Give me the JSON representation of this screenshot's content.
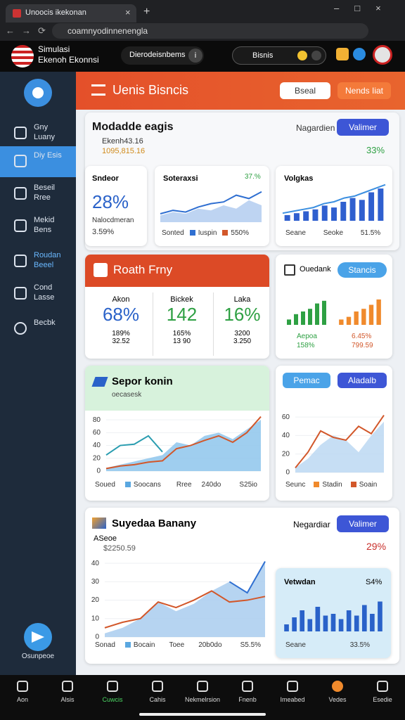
{
  "browser": {
    "tab_title": "Unoocis ikekonan",
    "url": "coamnyodinnenengla"
  },
  "header": {
    "app_name_1": "Simulasi",
    "app_name_2": "Ekenoh Ekonnsi",
    "section": "Dierodeisnbems",
    "section_badge": "i",
    "search": "Bisnis"
  },
  "sidebar": {
    "items": [
      "Gny Luany",
      "Diy Esis",
      "Beseil Rree",
      "Mekid Bens",
      "Roudan Beeel",
      "Cond Lasse",
      "Becbk"
    ],
    "footer": "Osunpeoe"
  },
  "banner": {
    "title": "Uenis Bisncis",
    "button_1": "Bseal",
    "button_2": "Nends Iiat"
  },
  "card_1": {
    "title": "Modadde eagis",
    "line_1": "Ekenh43.16",
    "line_2": "1095,815.16",
    "filter": "Nagardien",
    "button": "Valimer",
    "change": "33%",
    "stat": {
      "label": "Sndeor",
      "value": "28%",
      "sub_label": "Nalocdmeran",
      "sub_value": "3.59%"
    },
    "trend": {
      "title": "Soteraxsi",
      "change": "37.%",
      "legend": [
        "Sonted",
        "Iuspin",
        "550%"
      ],
      "chart": {
        "ylim": [
          0,
          10
        ],
        "series": [
          {
            "kind": "area",
            "color": "#b3cdf0",
            "values": [
              2,
              3,
              2.5,
              4,
              3.5,
              5,
              4,
              6.5,
              5
            ]
          },
          {
            "kind": "line",
            "color": "#2f6fd1",
            "values": [
              2.5,
              3.5,
              3,
              4.5,
              5.5,
              6,
              8,
              7,
              9
            ]
          }
        ]
      }
    },
    "volume": {
      "title": "Volgkas",
      "legend": [
        "Seane",
        "Seoke",
        "51.5%"
      ],
      "chart": {
        "ylim": [
          0,
          10
        ],
        "series": [
          {
            "kind": "bar",
            "color": "#2f5fcf",
            "values": [
              1.5,
              2,
              2.5,
              3,
              4,
              3.5,
              5,
              6,
              5.5,
              7.5,
              8.5
            ]
          },
          {
            "kind": "line",
            "color": "#3b8fe0",
            "values": [
              2,
              2.5,
              3,
              3.5,
              4.5,
              5,
              6,
              6.5,
              7.5,
              8.5,
              9.5
            ]
          }
        ]
      }
    }
  },
  "growth": {
    "title": "Roath Frny",
    "stats": [
      {
        "label": "Akon",
        "value": "68%",
        "line_1": "189%",
        "line_2": "32.52"
      },
      {
        "label": "Bickek",
        "value": "142",
        "line_1": "165%",
        "line_2": "13 90"
      },
      {
        "label": "Laka",
        "value": "16%",
        "line_1": "3200",
        "line_2": "3.250"
      }
    ]
  },
  "compare": {
    "checkbox": "Ouedank",
    "button": "Stancis",
    "left": {
      "line_1": "Aepoa",
      "line_2": "158%",
      "chart": {
        "ylim": [
          0,
          10
        ],
        "series": [
          {
            "kind": "bar",
            "color": "#2ea043",
            "values": [
              2,
              4,
              5,
              6,
              8,
              9
            ]
          }
        ]
      }
    },
    "right": {
      "line_1": "6.45%",
      "line_2": "799.59",
      "chart": {
        "ylim": [
          0,
          10
        ],
        "series": [
          {
            "kind": "bar",
            "color": "#f08a2c",
            "values": [
              2,
              3,
              5,
              6,
              7.5,
              9.5
            ]
          }
        ]
      }
    }
  },
  "sales": {
    "title": "Sepor konin",
    "subtitle": "oecasesk",
    "legend": [
      "Soued",
      "Soocans",
      "Rree",
      "240do",
      "S25io"
    ],
    "chart": {
      "ylim": [
        0,
        90
      ],
      "yticks": [
        0,
        20,
        40,
        60,
        80
      ],
      "series": [
        {
          "kind": "area",
          "color": "#8ec5ec",
          "values": [
            5,
            10,
            15,
            20,
            25,
            45,
            40,
            55,
            60,
            50,
            65,
            80
          ]
        },
        {
          "kind": "line",
          "color": "#2a9db0",
          "values": [
            25,
            40,
            42,
            55,
            30,
            null,
            null,
            null,
            null,
            null,
            null,
            null
          ]
        },
        {
          "kind": "line",
          "color": "#d2572a",
          "values": [
            4,
            8,
            10,
            14,
            16,
            35,
            40,
            48,
            55,
            45,
            60,
            85
          ]
        }
      ]
    }
  },
  "side_chart": {
    "button_1": "Pemac",
    "button_2": "Aladalb",
    "legend": [
      "Seunc",
      "Stadin",
      "Soain"
    ],
    "chart": {
      "ylim": [
        0,
        70
      ],
      "yticks": [
        0,
        20,
        40,
        60
      ],
      "series": [
        {
          "kind": "area",
          "color": "#bcd8f2",
          "values": [
            5,
            15,
            30,
            40,
            35,
            22,
            40,
            55
          ]
        },
        {
          "kind": "line",
          "color": "#d2572a",
          "values": [
            5,
            22,
            45,
            38,
            35,
            50,
            42,
            62
          ]
        }
      ]
    }
  },
  "summary": {
    "title": "Suyedaa Banany",
    "line_1": "ASeoe",
    "line_2": "$2250.59",
    "filter": "Negardiar",
    "button": "Valimer",
    "change": "29%",
    "legend": [
      "Sonad",
      "Bocain",
      "Toee",
      "20b0do",
      "S5.5%"
    ],
    "chart": {
      "ylim": [
        0,
        45
      ],
      "yticks": [
        0,
        10,
        20,
        30,
        40
      ],
      "series": [
        {
          "kind": "area",
          "color": "#a9cdef",
          "values": [
            2,
            5,
            10,
            19,
            14,
            18,
            25,
            30,
            24,
            41
          ]
        },
        {
          "kind": "line",
          "color": "#d2572a",
          "values": [
            5,
            8,
            10,
            19,
            16,
            20,
            25,
            19,
            20,
            22
          ]
        },
        {
          "kind": "line",
          "color": "#2f6fd1",
          "values": [
            null,
            null,
            null,
            null,
            null,
            null,
            null,
            30,
            24,
            41
          ]
        }
      ]
    },
    "inner": {
      "title": "Vetwdan",
      "change": "S4%",
      "legend": [
        "Seane",
        "33.5%"
      ],
      "chart": {
        "ylim": [
          0,
          10
        ],
        "series": [
          {
            "kind": "bar",
            "color": "#2a62c9",
            "values": [
              2,
              4,
              6,
              3.5,
              7,
              4.5,
              5,
              3.5,
              6,
              4.5,
              7.5,
              5,
              8.5
            ]
          }
        ]
      }
    }
  },
  "bottom_nav": [
    "Aon",
    "Alsis",
    "Cuwcis",
    "Cahis",
    "Nekmelrsion",
    "Fnenb",
    "Imeabed",
    "Vedes",
    "Esedie"
  ]
}
